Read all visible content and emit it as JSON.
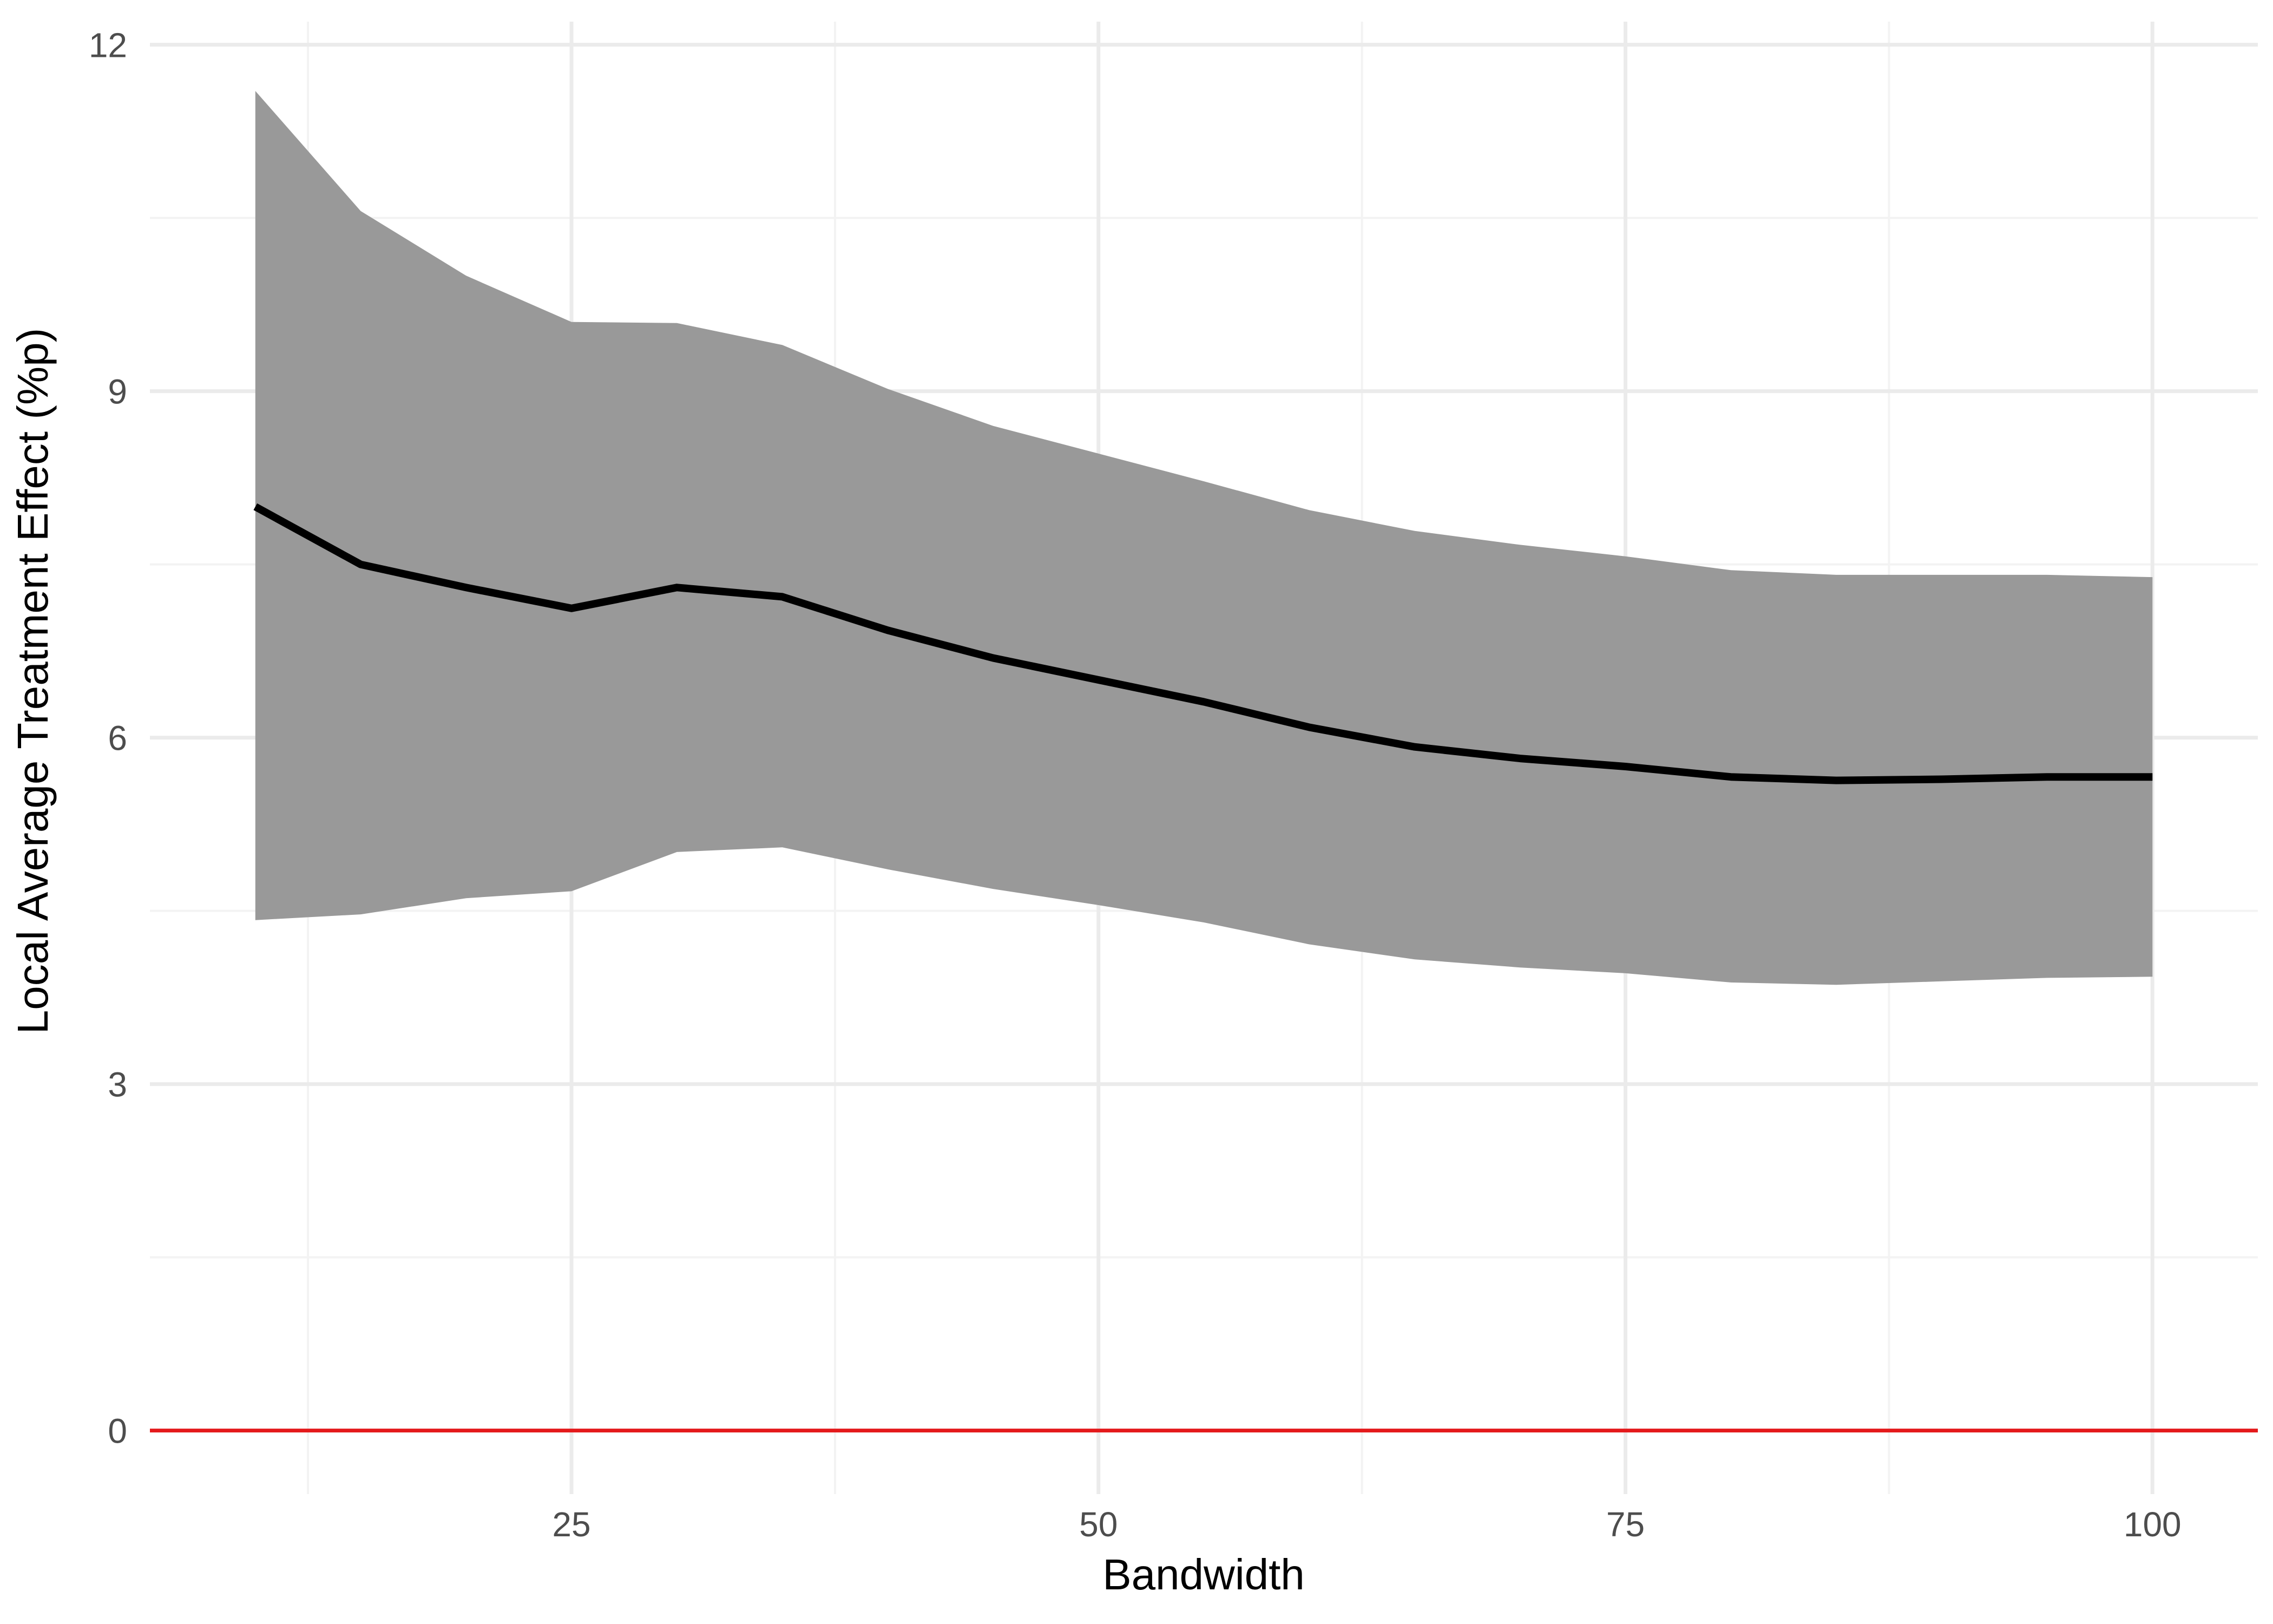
{
  "chart_data": {
    "type": "line",
    "title": "",
    "xlabel": "Bandwidth",
    "ylabel": "Local Average Treatment Effect (%p)",
    "xlim": [
      5,
      105
    ],
    "ylim": [
      -0.55,
      12.2
    ],
    "x_ticks": [
      25,
      50,
      75,
      100
    ],
    "x_tick_labels": [
      "25",
      "50",
      "75",
      "100"
    ],
    "y_ticks": [
      0,
      3,
      6,
      9,
      12
    ],
    "y_tick_labels": [
      "0",
      "3",
      "6",
      "9",
      "12"
    ],
    "x_minor_ticks": [
      12.5,
      37.5,
      62.5,
      87.5
    ],
    "y_minor_ticks": [
      1.5,
      4.5,
      7.5,
      10.5
    ],
    "grid": true,
    "legend": "none",
    "x": [
      10,
      15,
      20,
      25,
      30,
      35,
      40,
      45,
      50,
      55,
      60,
      65,
      70,
      75,
      80,
      85,
      90,
      95,
      100
    ],
    "series": [
      {
        "values": [
          8.0,
          7.5,
          7.3,
          7.12,
          7.3,
          7.22,
          6.93,
          6.69,
          6.5,
          6.31,
          6.09,
          5.92,
          5.82,
          5.75,
          5.66,
          5.63,
          5.64,
          5.66,
          5.66
        ],
        "lower": [
          4.42,
          4.47,
          4.61,
          4.67,
          5.01,
          5.05,
          4.86,
          4.69,
          4.55,
          4.4,
          4.21,
          4.08,
          4.01,
          3.96,
          3.88,
          3.86,
          3.89,
          3.92,
          3.93
        ],
        "upper": [
          11.6,
          10.56,
          10.0,
          9.6,
          9.59,
          9.4,
          9.02,
          8.7,
          8.46,
          8.22,
          7.97,
          7.79,
          7.67,
          7.57,
          7.45,
          7.41,
          7.41,
          7.41,
          7.39
        ]
      }
    ],
    "reference_line": {
      "y": 0
    },
    "colors": {
      "line": "#000000",
      "ribbon": "#999999",
      "reference": "#e41a1c",
      "grid_major": "#ebebeb",
      "grid_minor": "#f3f3f3",
      "background": "#ffffff"
    }
  }
}
